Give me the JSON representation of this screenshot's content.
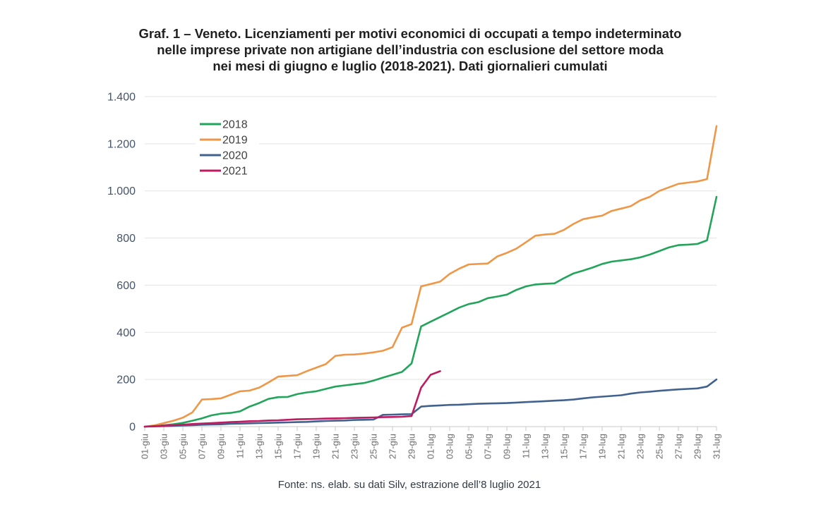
{
  "page": {
    "title_lines": [
      "Graf. 1 – Veneto. Licenziamenti per motivi economici di occupati a tempo indeterminato",
      "nelle imprese private non artigiane dell’industria con esclusione del settore moda",
      "nei mesi di giugno e luglio (2018-2021). Dati giornalieri cumulati"
    ],
    "source_note": "Fonte: ns. elab. su dati Silv, estrazione dell’8 luglio 2021"
  },
  "chart_data": {
    "type": "line",
    "title": "Graf. 1 – Veneto. Licenziamenti per motivi economici di occupati a tempo indeterminato nelle imprese private non artigiane dell’industria con esclusione del settore moda nei mesi di giugno e luglio (2018-2021). Dati giornalieri cumulati",
    "grid": true,
    "legend_position": "inside-top-left",
    "n_points": 61,
    "x_tick_every": 2,
    "x_tick_labels": [
      "01-giu",
      "03-giu",
      "05-giu",
      "07-giu",
      "09-giu",
      "11-giu",
      "13-giu",
      "15-giu",
      "17-giu",
      "19-giu",
      "21-giu",
      "23-giu",
      "25-giu",
      "27-giu",
      "29-giu",
      "01-lug",
      "03-lug",
      "05-lug",
      "07-lug",
      "09-lug",
      "11-lug",
      "13-lug",
      "15-lug",
      "17-lug",
      "19-lug",
      "21-lug",
      "23-lug",
      "25-lug",
      "27-lug",
      "29-lug",
      "31-lug"
    ],
    "ylim": [
      0,
      1400
    ],
    "ytick_values": [
      0,
      200,
      400,
      600,
      800,
      1000,
      1200,
      1400
    ],
    "ytick_labels": [
      "0",
      "200",
      "400",
      "600",
      "800",
      "1.000",
      "1.200",
      "1.400"
    ],
    "colors": {
      "grid": "#e3e3e3",
      "axis": "#c9c9c9",
      "y_labels": "#44546a",
      "x_labels": "#6e6e6e",
      "legend_text": "#3f3f3f"
    },
    "series": [
      {
        "name": "2018",
        "color": "#22a45b",
        "values": [
          0,
          3,
          6,
          10,
          16,
          25,
          35,
          48,
          55,
          58,
          65,
          85,
          100,
          118,
          125,
          126,
          138,
          145,
          150,
          160,
          170,
          175,
          180,
          185,
          195,
          208,
          220,
          232,
          268,
          425,
          445,
          465,
          485,
          505,
          520,
          528,
          545,
          552,
          560,
          580,
          595,
          603,
          606,
          608,
          630,
          650,
          662,
          675,
          690,
          700,
          705,
          710,
          718,
          730,
          745,
          760,
          770,
          772,
          775,
          790,
          975
        ]
      },
      {
        "name": "2019",
        "color": "#ee9747",
        "values": [
          0,
          5,
          15,
          25,
          38,
          60,
          115,
          117,
          120,
          135,
          150,
          153,
          165,
          188,
          212,
          215,
          218,
          235,
          250,
          265,
          300,
          305,
          306,
          310,
          315,
          322,
          337,
          420,
          435,
          595,
          605,
          615,
          648,
          670,
          688,
          690,
          692,
          722,
          737,
          755,
          782,
          810,
          815,
          818,
          835,
          860,
          880,
          888,
          895,
          915,
          925,
          935,
          960,
          975,
          1000,
          1015,
          1030,
          1035,
          1040,
          1050,
          1275
        ]
      },
      {
        "name": "2020",
        "color": "#41618e",
        "values": [
          0,
          1,
          2,
          3,
          5,
          6,
          8,
          9,
          10,
          12,
          13,
          14,
          15,
          16,
          17,
          18,
          19,
          20,
          22,
          24,
          25,
          26,
          28,
          29,
          30,
          50,
          51,
          52,
          53,
          85,
          88,
          90,
          92,
          93,
          95,
          97,
          98,
          99,
          100,
          102,
          104,
          106,
          108,
          110,
          112,
          115,
          120,
          124,
          127,
          130,
          133,
          140,
          145,
          148,
          152,
          155,
          158,
          160,
          162,
          170,
          200
        ]
      },
      {
        "name": "2021",
        "color": "#be1c61",
        "values": [
          0,
          2,
          4,
          6,
          8,
          11,
          13,
          15,
          17,
          19,
          21,
          23,
          24,
          26,
          27,
          29,
          31,
          32,
          33,
          34,
          35,
          36,
          37,
          38,
          39,
          40,
          41,
          42,
          45,
          165,
          220,
          235
        ]
      }
    ]
  }
}
